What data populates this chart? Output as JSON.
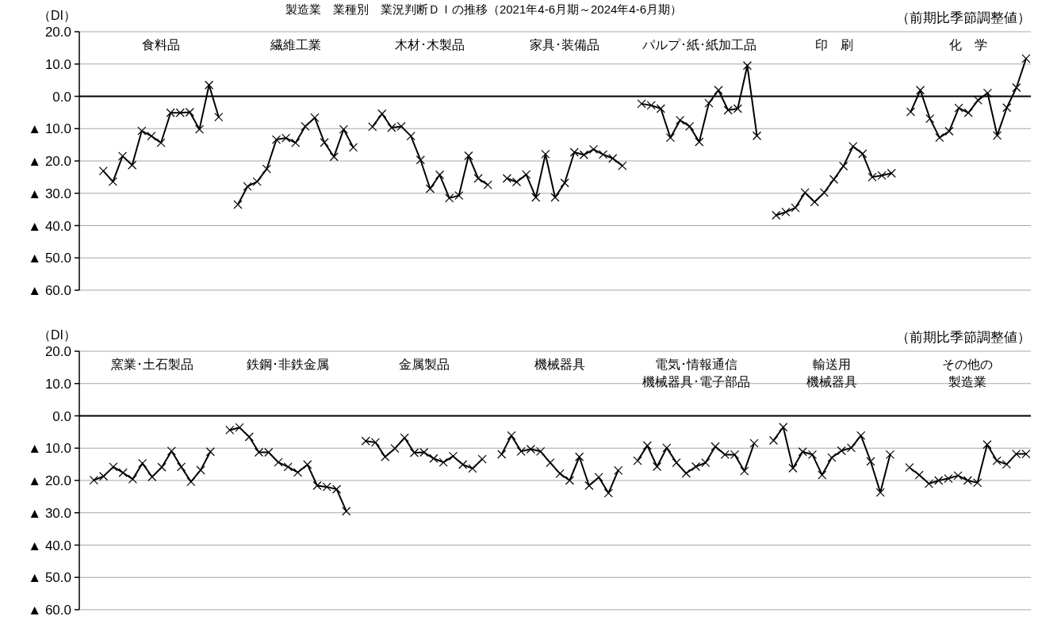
{
  "chart_data": [
    {
      "type": "line",
      "title": "製造業　業種別　業況判断ＤＩの推移（2021年4-6月期～2024年4-6月期）",
      "subtitle": "（前期比季節調整値）",
      "ylabel": "（DI）",
      "ylim": [
        -60,
        20
      ],
      "yticks": [
        {
          "value": 20,
          "label": "20.0"
        },
        {
          "value": 10,
          "label": "10.0"
        },
        {
          "value": 0,
          "label": "0.0"
        },
        {
          "value": -10,
          "label": "▲ 10.0"
        },
        {
          "value": -20,
          "label": "▲ 20.0"
        },
        {
          "value": -30,
          "label": "▲ 30.0"
        },
        {
          "value": -40,
          "label": "▲ 40.0"
        },
        {
          "value": -50,
          "label": "▲ 50.0"
        },
        {
          "value": -60,
          "label": "▲ 60.0"
        }
      ],
      "grid": "y",
      "marker": "cross",
      "line_style": "solid",
      "tick_labels": "y",
      "annotations": [
        "食料品",
        "繊維工業",
        "木材･木製品",
        "家具･装備品",
        "パルプ･紙･紙加工品",
        "印　刷",
        "化　学"
      ],
      "ref_lines": [
        {
          "axis": "y",
          "value": 0,
          "color": "#000000"
        }
      ],
      "categories": [
        null,
        null,
        null,
        null,
        null,
        null,
        null,
        null,
        null,
        null,
        null,
        null,
        null,
        null,
        null,
        null,
        null,
        null,
        null,
        null,
        null,
        null,
        null,
        null,
        null,
        null,
        null,
        null,
        null,
        null,
        null,
        null,
        null,
        null,
        null,
        null,
        null,
        null,
        null,
        null,
        null,
        null,
        null,
        null,
        null,
        null,
        null,
        null,
        null,
        null,
        null,
        null,
        null,
        null,
        null,
        null,
        null,
        null,
        null,
        null,
        null,
        null,
        null,
        null,
        null,
        null,
        null,
        null,
        null,
        null,
        null,
        null,
        null,
        null,
        null,
        null,
        null,
        null,
        null,
        null,
        null,
        null,
        null,
        null,
        null,
        null,
        null,
        null,
        null,
        null,
        null,
        null,
        null,
        null,
        null,
        null,
        null,
        null,
        null
      ],
      "series": [
        {
          "color": "#000000",
          "values": [
            null,
            null,
            -23.1,
            -26.4,
            -18.5,
            -21.3,
            -10.7,
            -12.3,
            -14.4,
            -5.1,
            -5.1,
            -4.9,
            -10.2,
            3.5,
            -6.4,
            null,
            null,
            null,
            null,
            null,
            null,
            null,
            null,
            null,
            null,
            null,
            null,
            null,
            null,
            null,
            null,
            null,
            null,
            null,
            null,
            null,
            null,
            null,
            null,
            null,
            null,
            null,
            null,
            null,
            null,
            null,
            null,
            null,
            null,
            null,
            null,
            null,
            null,
            null,
            null,
            null,
            null,
            null,
            null,
            null,
            null,
            null,
            null,
            null,
            null,
            null,
            null,
            null,
            null,
            null,
            null,
            null,
            null,
            null,
            null,
            null,
            null,
            null,
            null,
            null,
            null,
            null,
            null,
            null,
            null,
            null,
            null,
            null,
            null,
            null,
            null,
            null,
            null,
            null,
            null,
            null,
            null,
            null,
            null
          ]
        },
        {
          "color": "#000000",
          "values": [
            null,
            null,
            null,
            null,
            null,
            null,
            null,
            null,
            null,
            null,
            null,
            null,
            null,
            null,
            null,
            null,
            -33.5,
            -27.9,
            -26.4,
            -22.5,
            -13.4,
            -12.9,
            -14.4,
            -9.3,
            -6.6,
            -14.3,
            -18.7,
            -10.2,
            -15.8,
            null,
            null,
            null,
            null,
            null,
            null,
            null,
            null,
            null,
            null,
            null,
            null,
            null,
            null,
            null,
            null,
            null,
            null,
            null,
            null,
            null,
            null,
            null,
            null,
            null,
            null,
            null,
            null,
            null,
            null,
            null,
            null,
            null,
            null,
            null,
            null,
            null,
            null,
            null,
            null,
            null,
            null,
            null,
            null,
            null,
            null,
            null,
            null,
            null,
            null,
            null,
            null,
            null,
            null,
            null,
            null,
            null,
            null,
            null,
            null,
            null,
            null,
            null,
            null,
            null,
            null,
            null,
            null,
            null,
            null
          ]
        },
        {
          "color": "#000000",
          "values": [
            null,
            null,
            null,
            null,
            null,
            null,
            null,
            null,
            null,
            null,
            null,
            null,
            null,
            null,
            null,
            null,
            null,
            null,
            null,
            null,
            null,
            null,
            null,
            null,
            null,
            null,
            null,
            null,
            null,
            null,
            -9.4,
            -5.4,
            -9.7,
            -9.3,
            -12.3,
            -19.7,
            -28.6,
            -24.3,
            -31.5,
            -30.7,
            -18.4,
            -25.4,
            -27.4,
            null,
            null,
            null,
            null,
            null,
            null,
            null,
            null,
            null,
            null,
            null,
            null,
            null,
            null,
            null,
            null,
            null,
            null,
            null,
            null,
            null,
            null,
            null,
            null,
            null,
            null,
            null,
            null,
            null,
            null,
            null,
            null,
            null,
            null,
            null,
            null,
            null,
            null,
            null,
            null,
            null,
            null,
            null,
            null,
            null,
            null,
            null,
            null,
            null,
            null,
            null,
            null,
            null,
            null,
            null,
            null
          ]
        },
        {
          "color": "#000000",
          "values": [
            null,
            null,
            null,
            null,
            null,
            null,
            null,
            null,
            null,
            null,
            null,
            null,
            null,
            null,
            null,
            null,
            null,
            null,
            null,
            null,
            null,
            null,
            null,
            null,
            null,
            null,
            null,
            null,
            null,
            null,
            null,
            null,
            null,
            null,
            null,
            null,
            null,
            null,
            null,
            null,
            null,
            null,
            null,
            null,
            -25.4,
            -26.5,
            -24.2,
            -31.3,
            -17.9,
            -31.3,
            -26.8,
            -17.3,
            -18.1,
            -16.4,
            -18.0,
            -19.2,
            -21.5,
            null,
            null,
            null,
            null,
            null,
            null,
            null,
            null,
            null,
            null,
            null,
            null,
            null,
            null,
            null,
            null,
            null,
            null,
            null,
            null,
            null,
            null,
            null,
            null,
            null,
            null,
            null,
            null,
            null,
            null,
            null,
            null,
            null,
            null,
            null,
            null,
            null,
            null,
            null,
            null,
            null,
            null
          ]
        },
        {
          "color": "#000000",
          "values": [
            null,
            null,
            null,
            null,
            null,
            null,
            null,
            null,
            null,
            null,
            null,
            null,
            null,
            null,
            null,
            null,
            null,
            null,
            null,
            null,
            null,
            null,
            null,
            null,
            null,
            null,
            null,
            null,
            null,
            null,
            null,
            null,
            null,
            null,
            null,
            null,
            null,
            null,
            null,
            null,
            null,
            null,
            null,
            null,
            null,
            null,
            null,
            null,
            null,
            null,
            null,
            null,
            null,
            null,
            null,
            null,
            null,
            null,
            -2.3,
            -2.8,
            -3.8,
            -12.8,
            -7.4,
            -9.3,
            -14.1,
            -2.1,
            1.9,
            -4.3,
            -3.8,
            9.5,
            -12.2,
            null,
            null,
            null,
            null,
            null,
            null,
            null,
            null,
            null,
            null,
            null,
            null,
            null,
            null,
            null,
            null,
            null,
            null,
            null,
            null,
            null,
            null,
            null,
            null,
            null,
            null,
            null,
            null
          ]
        },
        {
          "color": "#000000",
          "values": [
            null,
            null,
            null,
            null,
            null,
            null,
            null,
            null,
            null,
            null,
            null,
            null,
            null,
            null,
            null,
            null,
            null,
            null,
            null,
            null,
            null,
            null,
            null,
            null,
            null,
            null,
            null,
            null,
            null,
            null,
            null,
            null,
            null,
            null,
            null,
            null,
            null,
            null,
            null,
            null,
            null,
            null,
            null,
            null,
            null,
            null,
            null,
            null,
            null,
            null,
            null,
            null,
            null,
            null,
            null,
            null,
            null,
            null,
            null,
            null,
            null,
            null,
            null,
            null,
            null,
            null,
            null,
            null,
            null,
            null,
            null,
            null,
            -36.8,
            -35.8,
            -34.5,
            -29.8,
            -32.7,
            -29.8,
            -25.7,
            -21.6,
            -15.5,
            -17.8,
            -25.0,
            -24.5,
            -23.8,
            null,
            null,
            null,
            null,
            null,
            null,
            null,
            null,
            null,
            null,
            null,
            null,
            null,
            null
          ]
        },
        {
          "color": "#000000",
          "values": [
            null,
            null,
            null,
            null,
            null,
            null,
            null,
            null,
            null,
            null,
            null,
            null,
            null,
            null,
            null,
            null,
            null,
            null,
            null,
            null,
            null,
            null,
            null,
            null,
            null,
            null,
            null,
            null,
            null,
            null,
            null,
            null,
            null,
            null,
            null,
            null,
            null,
            null,
            null,
            null,
            null,
            null,
            null,
            null,
            null,
            null,
            null,
            null,
            null,
            null,
            null,
            null,
            null,
            null,
            null,
            null,
            null,
            null,
            null,
            null,
            null,
            null,
            null,
            null,
            null,
            null,
            null,
            null,
            null,
            null,
            null,
            null,
            null,
            null,
            null,
            null,
            null,
            null,
            null,
            null,
            null,
            null,
            null,
            null,
            null,
            null,
            -4.8,
            1.9,
            -6.9,
            -12.8,
            -10.8,
            -3.6,
            -5.1,
            -1.2,
            1.0,
            -12.1,
            -3.5,
            2.7,
            11.7
          ]
        }
      ]
    },
    {
      "type": "line",
      "subtitle": "（前期比季節調整値）",
      "ylabel": "（DI）",
      "ylim": [
        -60,
        20
      ],
      "yticks": [
        {
          "value": 20,
          "label": "20.0"
        },
        {
          "value": 10,
          "label": "10.0"
        },
        {
          "value": 0,
          "label": "0.0"
        },
        {
          "value": -10,
          "label": "▲ 10.0"
        },
        {
          "value": -20,
          "label": "▲ 20.0"
        },
        {
          "value": -30,
          "label": "▲ 30.0"
        },
        {
          "value": -40,
          "label": "▲ 40.0"
        },
        {
          "value": -50,
          "label": "▲ 50.0"
        },
        {
          "value": -60,
          "label": "▲ 60.0"
        }
      ],
      "grid": "y",
      "marker": "cross",
      "line_style": "solid",
      "tick_labels": "y",
      "annotations": [
        "窯業･土石製品",
        "鉄鋼･非鉄金属",
        "金属製品",
        "機械器具",
        "電気･情報通信",
        "機械器具･電子部品",
        "輸送用",
        "機械器具",
        "その他の",
        "製造業"
      ],
      "ref_lines": [
        {
          "axis": "y",
          "value": 0,
          "color": "#000000"
        }
      ],
      "categories": [
        null,
        null,
        null,
        null,
        null,
        null,
        null,
        null,
        null,
        null,
        null,
        null,
        null,
        null,
        null,
        null,
        null,
        null,
        null,
        null,
        null,
        null,
        null,
        null,
        null,
        null,
        null,
        null,
        null,
        null,
        null,
        null,
        null,
        null,
        null,
        null,
        null,
        null,
        null,
        null,
        null,
        null,
        null,
        null,
        null,
        null,
        null,
        null,
        null,
        null,
        null,
        null,
        null,
        null,
        null,
        null,
        null,
        null,
        null,
        null,
        null,
        null,
        null,
        null,
        null,
        null,
        null,
        null,
        null,
        null,
        null,
        null,
        null,
        null,
        null,
        null,
        null,
        null,
        null,
        null,
        null,
        null,
        null,
        null,
        null,
        null,
        null,
        null,
        null,
        null,
        null,
        null,
        null,
        null,
        null,
        null,
        null,
        null
      ],
      "series": [
        {
          "color": "#000000",
          "values": [
            null,
            -19.9,
            -18.7,
            -15.8,
            -17.6,
            -19.6,
            -14.7,
            -18.9,
            -15.9,
            -10.9,
            -15.8,
            -20.4,
            -16.8,
            -11.1,
            null,
            null,
            null,
            null,
            null,
            null,
            null,
            null,
            null,
            null,
            null,
            null,
            null,
            null,
            null,
            null,
            null,
            null,
            null,
            null,
            null,
            null,
            null,
            null,
            null,
            null,
            null,
            null,
            null,
            null,
            null,
            null,
            null,
            null,
            null,
            null,
            null,
            null,
            null,
            null,
            null,
            null,
            null,
            null,
            null,
            null,
            null,
            null,
            null,
            null,
            null,
            null,
            null,
            null,
            null,
            null,
            null,
            null,
            null,
            null,
            null,
            null,
            null,
            null,
            null,
            null,
            null,
            null,
            null,
            null,
            null,
            null,
            null,
            null,
            null,
            null,
            null,
            null,
            null,
            null,
            null,
            null,
            null,
            null
          ]
        },
        {
          "color": "#000000",
          "values": [
            null,
            null,
            null,
            null,
            null,
            null,
            null,
            null,
            null,
            null,
            null,
            null,
            null,
            null,
            null,
            -4.4,
            -3.6,
            -6.5,
            -11.3,
            -11.3,
            -14.4,
            -15.8,
            -17.5,
            -15.1,
            -21.6,
            -22.0,
            -22.7,
            -29.5,
            null,
            null,
            null,
            null,
            null,
            null,
            null,
            null,
            null,
            null,
            null,
            null,
            null,
            null,
            null,
            null,
            null,
            null,
            null,
            null,
            null,
            null,
            null,
            null,
            null,
            null,
            null,
            null,
            null,
            null,
            null,
            null,
            null,
            null,
            null,
            null,
            null,
            null,
            null,
            null,
            null,
            null,
            null,
            null,
            null,
            null,
            null,
            null,
            null,
            null,
            null,
            null,
            null,
            null,
            null,
            null,
            null,
            null,
            null,
            null,
            null,
            null,
            null,
            null,
            null,
            null,
            null,
            null,
            null,
            null
          ]
        },
        {
          "color": "#000000",
          "values": [
            null,
            null,
            null,
            null,
            null,
            null,
            null,
            null,
            null,
            null,
            null,
            null,
            null,
            null,
            null,
            null,
            null,
            null,
            null,
            null,
            null,
            null,
            null,
            null,
            null,
            null,
            null,
            null,
            null,
            -7.8,
            -8.2,
            -12.7,
            -10.1,
            -6.8,
            -11.4,
            -11.3,
            -13.2,
            -14.4,
            -12.5,
            -15.1,
            -16.3,
            -13.4,
            null,
            null,
            null,
            null,
            null,
            null,
            null,
            null,
            null,
            null,
            null,
            null,
            null,
            null,
            null,
            null,
            null,
            null,
            null,
            null,
            null,
            null,
            null,
            null,
            null,
            null,
            null,
            null,
            null,
            null,
            null,
            null,
            null,
            null,
            null,
            null,
            null,
            null,
            null,
            null,
            null,
            null,
            null,
            null,
            null,
            null,
            null,
            null,
            null,
            null,
            null,
            null,
            null,
            null,
            null,
            null
          ]
        },
        {
          "color": "#000000",
          "values": [
            null,
            null,
            null,
            null,
            null,
            null,
            null,
            null,
            null,
            null,
            null,
            null,
            null,
            null,
            null,
            null,
            null,
            null,
            null,
            null,
            null,
            null,
            null,
            null,
            null,
            null,
            null,
            null,
            null,
            null,
            null,
            null,
            null,
            null,
            null,
            null,
            null,
            null,
            null,
            null,
            null,
            null,
            null,
            -11.9,
            -6.1,
            -11.0,
            -10.3,
            -11.0,
            -14.5,
            -17.9,
            -20.0,
            -12.7,
            -21.6,
            -19.0,
            -23.9,
            -16.9,
            null,
            null,
            null,
            null,
            null,
            null,
            null,
            null,
            null,
            null,
            null,
            null,
            null,
            null,
            null,
            null,
            null,
            null,
            null,
            null,
            null,
            null,
            null,
            null,
            null,
            null,
            null,
            null,
            null,
            null,
            null,
            null,
            null,
            null,
            null,
            null,
            null,
            null,
            null,
            null,
            null,
            null
          ]
        },
        {
          "color": "#000000",
          "values": [
            null,
            null,
            null,
            null,
            null,
            null,
            null,
            null,
            null,
            null,
            null,
            null,
            null,
            null,
            null,
            null,
            null,
            null,
            null,
            null,
            null,
            null,
            null,
            null,
            null,
            null,
            null,
            null,
            null,
            null,
            null,
            null,
            null,
            null,
            null,
            null,
            null,
            null,
            null,
            null,
            null,
            null,
            null,
            null,
            null,
            null,
            null,
            null,
            null,
            null,
            null,
            null,
            null,
            null,
            null,
            null,
            null,
            -13.9,
            -9.2,
            -15.7,
            -9.9,
            -14.5,
            -17.8,
            -15.7,
            -14.5,
            -9.5,
            -12.0,
            -12.0,
            -17.1,
            -8.5,
            null,
            null,
            null,
            null,
            null,
            null,
            null,
            null,
            null,
            null,
            null,
            null,
            null,
            null,
            null,
            null,
            null,
            null,
            null,
            null,
            null,
            null,
            null,
            null,
            null,
            null,
            null,
            null
          ]
        },
        {
          "color": "#000000",
          "values": [
            null,
            null,
            null,
            null,
            null,
            null,
            null,
            null,
            null,
            null,
            null,
            null,
            null,
            null,
            null,
            null,
            null,
            null,
            null,
            null,
            null,
            null,
            null,
            null,
            null,
            null,
            null,
            null,
            null,
            null,
            null,
            null,
            null,
            null,
            null,
            null,
            null,
            null,
            null,
            null,
            null,
            null,
            null,
            null,
            null,
            null,
            null,
            null,
            null,
            null,
            null,
            null,
            null,
            null,
            null,
            null,
            null,
            null,
            null,
            null,
            null,
            null,
            null,
            null,
            null,
            null,
            null,
            null,
            null,
            null,
            null,
            -7.6,
            -3.5,
            -16.2,
            -11.1,
            -12.0,
            -18.3,
            -12.9,
            -10.8,
            -9.9,
            -6.1,
            -14.1,
            -23.7,
            -12.0,
            null,
            null,
            null,
            null,
            null,
            null,
            null,
            null,
            null,
            null,
            null,
            null,
            null,
            null
          ]
        },
        {
          "color": "#000000",
          "values": [
            null,
            null,
            null,
            null,
            null,
            null,
            null,
            null,
            null,
            null,
            null,
            null,
            null,
            null,
            null,
            null,
            null,
            null,
            null,
            null,
            null,
            null,
            null,
            null,
            null,
            null,
            null,
            null,
            null,
            null,
            null,
            null,
            null,
            null,
            null,
            null,
            null,
            null,
            null,
            null,
            null,
            null,
            null,
            null,
            null,
            null,
            null,
            null,
            null,
            null,
            null,
            null,
            null,
            null,
            null,
            null,
            null,
            null,
            null,
            null,
            null,
            null,
            null,
            null,
            null,
            null,
            null,
            null,
            null,
            null,
            null,
            null,
            null,
            null,
            null,
            null,
            null,
            null,
            null,
            null,
            null,
            null,
            null,
            null,
            null,
            -16.0,
            -18.3,
            -21.0,
            -20.0,
            -19.4,
            -18.5,
            -20.0,
            -20.7,
            -8.9,
            -13.9,
            -15.0,
            -11.8,
            -11.8
          ]
        }
      ]
    }
  ]
}
